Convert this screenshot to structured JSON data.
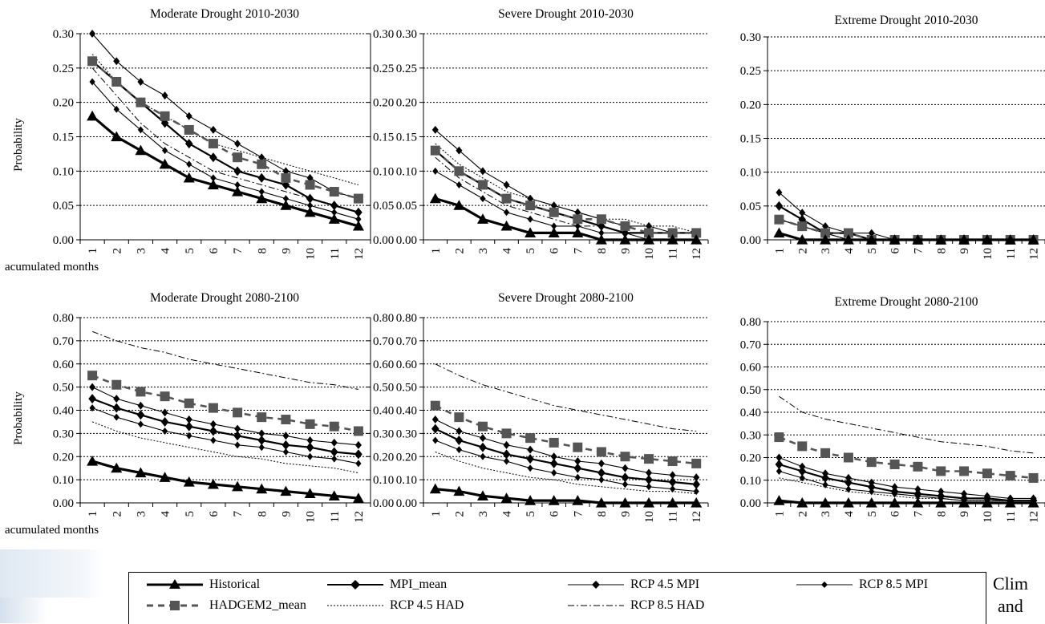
{
  "x_axis_label": "acumulated months",
  "side_text": [
    "Clim",
    "and"
  ],
  "colors": {
    "line": "#000000",
    "had_marker": "#555555",
    "grid": "#000000"
  },
  "legend": [
    {
      "name": "Historical",
      "style": "historical"
    },
    {
      "name": "MPI_mean",
      "style": "mpi_mean"
    },
    {
      "name": "RCP 4.5 MPI",
      "style": "rcp45mpi"
    },
    {
      "name": "RCP 8.5 MPI",
      "style": "rcp85mpi"
    },
    {
      "name": "HADGEM2_mean",
      "style": "had_mean"
    },
    {
      "name": "RCP 4.5 HAD",
      "style": "rcp45had"
    },
    {
      "name": "RCP 8.5 HAD",
      "style": "rcp85had"
    }
  ],
  "chart_data": [
    {
      "type": "line",
      "title": "Moderate Drought 2010-2030",
      "ylabel": "Probability",
      "ylim": [
        0,
        0.3
      ],
      "yticks": [
        "0.00",
        "0.05",
        "0.10",
        "0.15",
        "0.20",
        "0.25",
        "0.30"
      ],
      "x": [
        "1",
        "2",
        "3",
        "4",
        "5",
        "6",
        "7",
        "8",
        "9",
        "10",
        "11",
        "12"
      ],
      "grid": true,
      "show_left_axis": true,
      "show_right_axis": false,
      "series": [
        {
          "name": "Historical",
          "style": "historical",
          "values": [
            0.18,
            0.15,
            0.13,
            0.11,
            0.09,
            0.08,
            0.07,
            0.06,
            0.05,
            0.04,
            0.03,
            0.02
          ]
        },
        {
          "name": "MPI_mean",
          "style": "mpi_mean",
          "values": [
            0.26,
            0.23,
            0.2,
            0.17,
            0.14,
            0.12,
            0.1,
            0.09,
            0.08,
            0.06,
            0.05,
            0.04
          ]
        },
        {
          "name": "RCP 4.5 MPI",
          "style": "rcp45mpi",
          "values": [
            0.3,
            0.26,
            0.23,
            0.21,
            0.18,
            0.16,
            0.14,
            0.12,
            0.1,
            0.09,
            0.07,
            0.06
          ]
        },
        {
          "name": "RCP 8.5 MPI",
          "style": "rcp85mpi",
          "values": [
            0.23,
            0.19,
            0.16,
            0.13,
            0.11,
            0.09,
            0.08,
            0.07,
            0.06,
            0.05,
            0.04,
            0.03
          ]
        },
        {
          "name": "HADGEM2_mean",
          "style": "had_mean",
          "values": [
            0.26,
            0.23,
            0.2,
            0.18,
            0.16,
            0.14,
            0.12,
            0.11,
            0.09,
            0.08,
            0.07,
            0.06
          ]
        },
        {
          "name": "RCP 4.5 HAD",
          "style": "rcp45had",
          "values": [
            0.27,
            0.23,
            0.2,
            0.18,
            0.16,
            0.14,
            0.13,
            0.12,
            0.11,
            0.1,
            0.09,
            0.08
          ]
        },
        {
          "name": "RCP 8.5 HAD",
          "style": "rcp85had",
          "values": [
            0.25,
            0.21,
            0.17,
            0.14,
            0.12,
            0.1,
            0.09,
            0.08,
            0.07,
            0.06,
            0.05,
            0.04
          ]
        }
      ]
    },
    {
      "type": "line",
      "title": "Severe Drought 2010-2030",
      "ylabel": "",
      "ylim": [
        0,
        0.3
      ],
      "yticks": [
        "0.00",
        "0.05",
        "0.10",
        "0.15",
        "0.20",
        "0.25",
        "0.30"
      ],
      "x": [
        "1",
        "2",
        "3",
        "4",
        "5",
        "6",
        "7",
        "8",
        "9",
        "10",
        "11",
        "12"
      ],
      "grid": true,
      "show_left_axis": true,
      "show_right_axis": true,
      "series": [
        {
          "name": "Historical",
          "style": "historical",
          "values": [
            0.06,
            0.05,
            0.03,
            0.02,
            0.01,
            0.01,
            0.01,
            0,
            0,
            0,
            0,
            0
          ]
        },
        {
          "name": "MPI_mean",
          "style": "mpi_mean",
          "values": [
            0.13,
            0.1,
            0.08,
            0.06,
            0.05,
            0.04,
            0.03,
            0.02,
            0.01,
            0.01,
            0.01,
            0.01
          ]
        },
        {
          "name": "RCP 4.5 MPI",
          "style": "rcp45mpi",
          "values": [
            0.16,
            0.13,
            0.1,
            0.08,
            0.06,
            0.05,
            0.04,
            0.03,
            0.02,
            0.02,
            0.01,
            0.01
          ]
        },
        {
          "name": "RCP 8.5 MPI",
          "style": "rcp85mpi",
          "values": [
            0.1,
            0.08,
            0.06,
            0.04,
            0.03,
            0.02,
            0.02,
            0.01,
            0.01,
            0,
            0,
            0
          ]
        },
        {
          "name": "HADGEM2_mean",
          "style": "had_mean",
          "values": [
            0.13,
            0.1,
            0.08,
            0.06,
            0.05,
            0.04,
            0.03,
            0.03,
            0.02,
            0.01,
            0.01,
            0.01
          ]
        },
        {
          "name": "RCP 4.5 HAD",
          "style": "rcp45had",
          "values": [
            0.14,
            0.11,
            0.09,
            0.07,
            0.06,
            0.05,
            0.04,
            0.03,
            0.03,
            0.02,
            0.02,
            0.01
          ]
        },
        {
          "name": "RCP 8.5 HAD",
          "style": "rcp85had",
          "values": [
            0.12,
            0.09,
            0.07,
            0.05,
            0.04,
            0.03,
            0.02,
            0.02,
            0.01,
            0.01,
            0.01,
            0.01
          ]
        }
      ]
    },
    {
      "type": "line",
      "title": "Extreme Drought 2010-2030",
      "ylabel": "",
      "ylim": [
        0,
        0.3
      ],
      "yticks": [
        "0.00",
        "0.05",
        "0.10",
        "0.15",
        "0.20",
        "0.25",
        "0.30"
      ],
      "x": [
        "1",
        "2",
        "3",
        "4",
        "5",
        "6",
        "7",
        "8",
        "9",
        "10",
        "11",
        "12"
      ],
      "grid": true,
      "show_left_axis": true,
      "show_right_axis": false,
      "series": [
        {
          "name": "Historical",
          "style": "historical",
          "values": [
            0.01,
            0,
            0,
            0,
            0,
            0,
            0,
            0,
            0,
            0,
            0,
            0
          ]
        },
        {
          "name": "MPI_mean",
          "style": "mpi_mean",
          "values": [
            0.05,
            0.03,
            0.01,
            0.01,
            0,
            0,
            0,
            0,
            0,
            0,
            0,
            0
          ]
        },
        {
          "name": "RCP 4.5 MPI",
          "style": "rcp45mpi",
          "values": [
            0.07,
            0.04,
            0.02,
            0.01,
            0.01,
            0,
            0,
            0,
            0,
            0,
            0,
            0
          ]
        },
        {
          "name": "RCP 8.5 MPI",
          "style": "rcp85mpi",
          "values": [
            0.03,
            0.02,
            0.01,
            0,
            0,
            0,
            0,
            0,
            0,
            0,
            0,
            0
          ]
        },
        {
          "name": "HADGEM2_mean",
          "style": "had_mean",
          "values": [
            0.03,
            0.02,
            0.01,
            0.01,
            0,
            0,
            0,
            0,
            0,
            0,
            0,
            0
          ]
        },
        {
          "name": "RCP 4.5 HAD",
          "style": "rcp45had",
          "values": [
            0.03,
            0.02,
            0.01,
            0,
            0,
            0,
            0,
            0,
            0,
            0,
            0,
            0
          ]
        },
        {
          "name": "RCP 8.5 HAD",
          "style": "rcp85had",
          "values": [
            0.03,
            0.02,
            0.01,
            0,
            0,
            0,
            0,
            0,
            0,
            0,
            0,
            0
          ]
        }
      ]
    },
    {
      "type": "line",
      "title": "Moderate Drought 2080-2100",
      "ylabel": "Probability",
      "ylim": [
        0,
        0.8
      ],
      "yticks": [
        "0.00",
        "0.10",
        "0.20",
        "0.30",
        "0.40",
        "0.50",
        "0.60",
        "0.70",
        "0.80"
      ],
      "x": [
        "1",
        "2",
        "3",
        "4",
        "5",
        "6",
        "7",
        "8",
        "9",
        "10",
        "11",
        "12"
      ],
      "grid": true,
      "show_left_axis": true,
      "show_right_axis": false,
      "series": [
        {
          "name": "Historical",
          "style": "historical",
          "values": [
            0.18,
            0.15,
            0.13,
            0.11,
            0.09,
            0.08,
            0.07,
            0.06,
            0.05,
            0.04,
            0.03,
            0.02
          ]
        },
        {
          "name": "MPI_mean",
          "style": "mpi_mean",
          "values": [
            0.45,
            0.41,
            0.38,
            0.35,
            0.33,
            0.31,
            0.29,
            0.27,
            0.25,
            0.24,
            0.22,
            0.21
          ]
        },
        {
          "name": "RCP 4.5 MPI",
          "style": "rcp45mpi",
          "values": [
            0.5,
            0.45,
            0.42,
            0.39,
            0.36,
            0.34,
            0.32,
            0.3,
            0.29,
            0.27,
            0.26,
            0.25
          ]
        },
        {
          "name": "RCP 8.5 MPI",
          "style": "rcp85mpi",
          "values": [
            0.41,
            0.37,
            0.34,
            0.31,
            0.29,
            0.27,
            0.25,
            0.24,
            0.22,
            0.2,
            0.19,
            0.17
          ]
        },
        {
          "name": "HADGEM2_mean",
          "style": "had_mean",
          "values": [
            0.55,
            0.51,
            0.48,
            0.46,
            0.43,
            0.41,
            0.39,
            0.37,
            0.36,
            0.34,
            0.33,
            0.31
          ]
        },
        {
          "name": "RCP 4.5 HAD",
          "style": "rcp45had",
          "values": [
            0.35,
            0.31,
            0.28,
            0.26,
            0.24,
            0.22,
            0.2,
            0.19,
            0.17,
            0.16,
            0.15,
            0.13
          ]
        },
        {
          "name": "RCP 8.5 HAD",
          "style": "rcp85had",
          "values": [
            0.74,
            0.7,
            0.67,
            0.65,
            0.62,
            0.6,
            0.58,
            0.56,
            0.54,
            0.52,
            0.51,
            0.49
          ]
        }
      ]
    },
    {
      "type": "line",
      "title": "Severe Drought 2080-2100",
      "ylabel": "",
      "ylim": [
        0,
        0.8
      ],
      "yticks": [
        "0.00",
        "0.10",
        "0.20",
        "0.30",
        "0.40",
        "0.50",
        "0.60",
        "0.70",
        "0.80"
      ],
      "x": [
        "1",
        "2",
        "3",
        "4",
        "5",
        "6",
        "7",
        "8",
        "9",
        "10",
        "11",
        "12"
      ],
      "grid": true,
      "show_left_axis": true,
      "show_right_axis": true,
      "series": [
        {
          "name": "Historical",
          "style": "historical",
          "values": [
            0.06,
            0.05,
            0.03,
            0.02,
            0.01,
            0.01,
            0.01,
            0,
            0,
            0,
            0,
            0
          ]
        },
        {
          "name": "MPI_mean",
          "style": "mpi_mean",
          "values": [
            0.32,
            0.27,
            0.24,
            0.21,
            0.19,
            0.17,
            0.15,
            0.13,
            0.11,
            0.1,
            0.09,
            0.08
          ]
        },
        {
          "name": "RCP 4.5 MPI",
          "style": "rcp45mpi",
          "values": [
            0.36,
            0.31,
            0.28,
            0.25,
            0.23,
            0.2,
            0.18,
            0.17,
            0.15,
            0.13,
            0.12,
            0.11
          ]
        },
        {
          "name": "RCP 8.5 MPI",
          "style": "rcp85mpi",
          "values": [
            0.27,
            0.23,
            0.2,
            0.18,
            0.15,
            0.13,
            0.11,
            0.1,
            0.08,
            0.07,
            0.06,
            0.05
          ]
        },
        {
          "name": "HADGEM2_mean",
          "style": "had_mean",
          "values": [
            0.42,
            0.37,
            0.33,
            0.3,
            0.28,
            0.26,
            0.24,
            0.22,
            0.2,
            0.19,
            0.18,
            0.17
          ]
        },
        {
          "name": "RCP 4.5 HAD",
          "style": "rcp45had",
          "values": [
            0.22,
            0.18,
            0.15,
            0.13,
            0.11,
            0.1,
            0.08,
            0.07,
            0.06,
            0.05,
            0.05,
            0.04
          ]
        },
        {
          "name": "RCP 8.5 HAD",
          "style": "rcp85had",
          "values": [
            0.6,
            0.55,
            0.51,
            0.48,
            0.45,
            0.42,
            0.4,
            0.38,
            0.36,
            0.34,
            0.32,
            0.31
          ]
        }
      ]
    },
    {
      "type": "line",
      "title": "Extreme Drought 2080-2100",
      "ylabel": "",
      "ylim": [
        0,
        0.8
      ],
      "yticks": [
        "0.00",
        "0.10",
        "0.20",
        "0.30",
        "0.40",
        "0.50",
        "0.60",
        "0.70",
        "0.80"
      ],
      "x": [
        "1",
        "2",
        "3",
        "4",
        "5",
        "6",
        "7",
        "8",
        "9",
        "10",
        "11",
        "12"
      ],
      "grid": true,
      "show_left_axis": true,
      "show_right_axis": false,
      "series": [
        {
          "name": "Historical",
          "style": "historical",
          "values": [
            0.01,
            0,
            0,
            0,
            0,
            0,
            0,
            0,
            0,
            0,
            0,
            0
          ]
        },
        {
          "name": "MPI_mean",
          "style": "mpi_mean",
          "values": [
            0.17,
            0.14,
            0.11,
            0.09,
            0.07,
            0.05,
            0.04,
            0.03,
            0.02,
            0.02,
            0.01,
            0.01
          ]
        },
        {
          "name": "RCP 4.5 MPI",
          "style": "rcp45mpi",
          "values": [
            0.2,
            0.16,
            0.13,
            0.11,
            0.09,
            0.07,
            0.06,
            0.05,
            0.04,
            0.03,
            0.02,
            0.02
          ]
        },
        {
          "name": "RCP 8.5 MPI",
          "style": "rcp85mpi",
          "values": [
            0.14,
            0.11,
            0.08,
            0.06,
            0.05,
            0.04,
            0.03,
            0.02,
            0.01,
            0.01,
            0.01,
            0.01
          ]
        },
        {
          "name": "HADGEM2_mean",
          "style": "had_mean",
          "values": [
            0.29,
            0.25,
            0.22,
            0.2,
            0.18,
            0.17,
            0.16,
            0.14,
            0.14,
            0.13,
            0.12,
            0.11
          ]
        },
        {
          "name": "RCP 4.5 HAD",
          "style": "rcp45had",
          "values": [
            0.11,
            0.09,
            0.07,
            0.05,
            0.04,
            0.03,
            0.02,
            0.02,
            0.01,
            0.01,
            0.01,
            0.01
          ]
        },
        {
          "name": "RCP 8.5 HAD",
          "style": "rcp85had",
          "values": [
            0.47,
            0.4,
            0.37,
            0.35,
            0.33,
            0.31,
            0.29,
            0.27,
            0.26,
            0.25,
            0.23,
            0.22
          ]
        }
      ]
    }
  ]
}
